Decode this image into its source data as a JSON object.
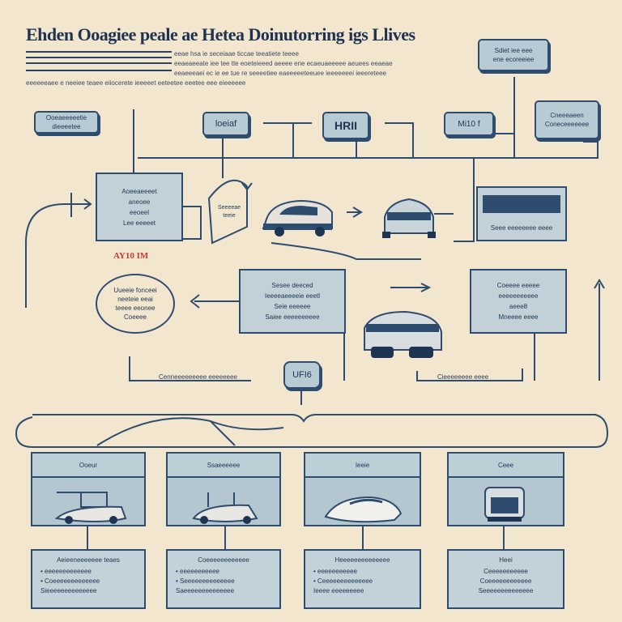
{
  "header": {
    "title": "Ehden Ooagiee peale ae Hetea Doinutorring igs Llives",
    "sub_lines": [
      "eeae hsa ie seceiaae ticcae teeatiete teeee",
      "eeaeaeeate iee tee tte eoeteieeed aeeee ene ecaeuaeeeee aeuees eeaeae",
      "eeaeeeaei ec ie ee tue re seeeetiee eaeeeeeteeuee ieeeeeeei ieeereteee",
      "eeeeeeaee e neeiee teaee eiiocerete ieeeeet eeteetee eeetee eee eieeeeee"
    ]
  },
  "top_boxes": {
    "box_a": "Ooeaeeeeetie dieeeetee",
    "box_b": "loeiaf",
    "box_c": "HRII",
    "box_d": "Mi10 f",
    "box_e": "Cneeeaeen Coneceeeeeee",
    "box_f_top": "Sdiet iee eee",
    "box_f_bottom": "ene ecoreeiee"
  },
  "middle": {
    "left_panel": [
      "Aoeeaeeeet",
      "aneoee",
      "eeoeel",
      "Lee eeeeet"
    ],
    "scale_label": [
      "Seeeeae",
      "teeie"
    ],
    "red_label": "AY10 IM",
    "ellipse_text": [
      "Uueeie fonceei",
      "neeteie eeai",
      "teeee eeonee",
      "Coeeee"
    ],
    "center_panel": [
      "Sesee deeced",
      "Ieeeeaeeeeie eeetl",
      "Seie eeeeee",
      "Saiee eeeeeeeeee"
    ],
    "right_bar_label": "Seee eeeeeeee eeee",
    "right_panel": [
      "Coeeee eeeee",
      "eeeeeeeeeee",
      "aeee8",
      "Mneeee eeee"
    ],
    "hub_label": "UFI6",
    "left_pill": "Cenneeeeeeeee eeeeeeee",
    "right_pill": "Cieeeeeeee eeee"
  },
  "cards": [
    {
      "head": "Ooeur",
      "note_title": "Aeieeneeeeeee teaes",
      "note_lines": [
        "• eeeeeeeeeeeee",
        "• Coeeeeeeeeeeeee",
        "Sieeeeeeeeeeeeee"
      ]
    },
    {
      "head": "Ssaeeeeee",
      "note_title": "Coeeeeeeeeeeee",
      "note_lines": [
        "• eeeeeeeeeee",
        "• Seeeeeeeeeeeeee",
        "Saeeeeeeeeeeeeee"
      ]
    },
    {
      "head": "Ieeie",
      "note_title": "Heeeeeeeeeeeeee",
      "note_lines": [
        "• eeeeeeeeeee",
        "• Ceeeeeeeeeeeeee",
        "Ieeee eeeeeeeee"
      ]
    },
    {
      "head": "Ceee",
      "note_title": "Heei",
      "note_lines": [
        "Ceeeeeeeeeee",
        "Coeeeeeeeeeeee",
        "Seeeeeeeeeeeeee"
      ]
    }
  ],
  "colors": {
    "background": "#f2e6cf",
    "ink": "#2e4c6e",
    "box_fill": "#b8cad3",
    "accent_red": "#c63b35"
  }
}
